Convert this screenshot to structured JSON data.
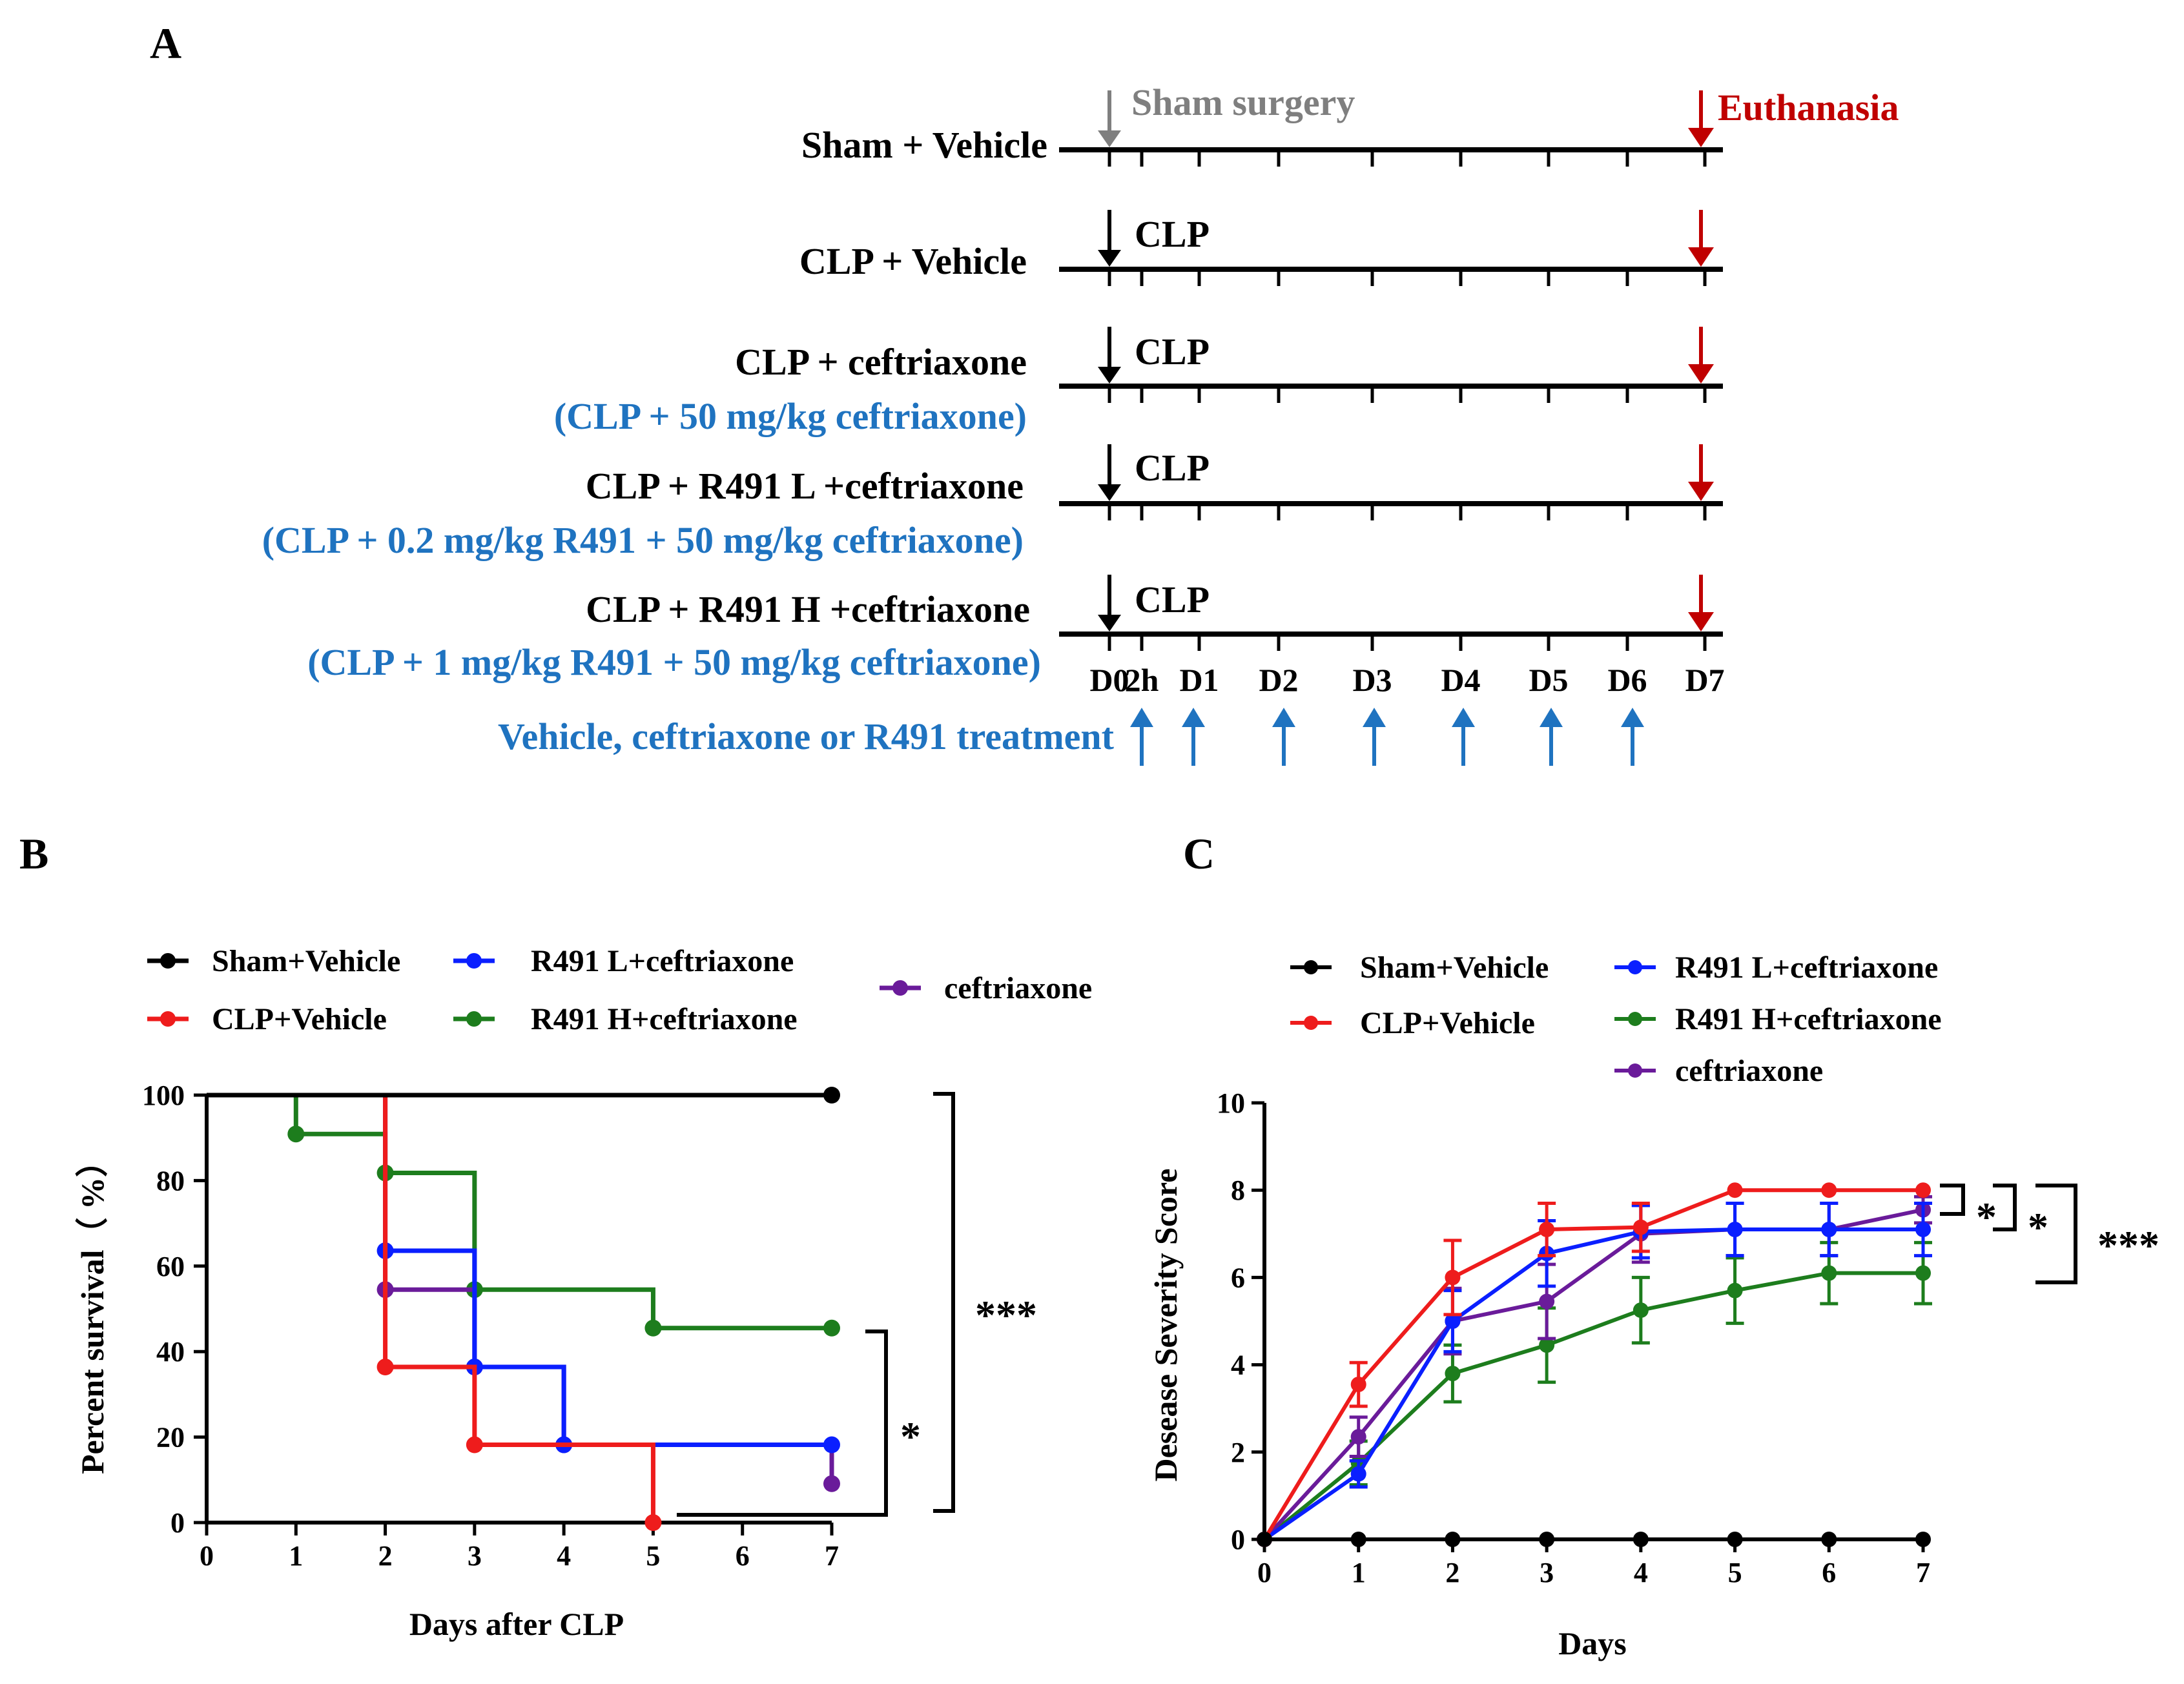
{
  "colors": {
    "black": "#000000",
    "grey": "#7f7f7f",
    "red": "#c00000",
    "blue": "#1f73c0",
    "sham": "#000000",
    "clp": "#ee1c1c",
    "low": "#0a1fff",
    "high": "#1d7d1d",
    "cef": "#6a1b9a"
  },
  "panel_a": {
    "label": "A",
    "sham_surgery": "Sham surgery",
    "euthanasia": "Euthanasia",
    "clp_marker": "CLP",
    "groups": [
      {
        "name": "Sham + Vehicle",
        "dose": ""
      },
      {
        "name": "CLP + Vehicle",
        "dose": ""
      },
      {
        "name": "CLP + ceftriaxone",
        "dose": "(CLP + 50 mg/kg  ceftriaxone)"
      },
      {
        "name": "CLP + R491 L +ceftriaxone",
        "dose": "(CLP + 0.2 mg/kg  R491 + 50 mg/kg  ceftriaxone)"
      },
      {
        "name": "CLP + R491 H +ceftriaxone",
        "dose": "(CLP + 1 mg/kg  R491 + 50 mg/kg  ceftriaxone)"
      }
    ],
    "days": [
      "D0",
      "2h",
      "D1",
      "D2",
      "D3",
      "D4",
      "D5",
      "D6",
      "D7"
    ],
    "treatment": "Vehicle, ceftriaxone or R491 treatment"
  },
  "chart_data": [
    {
      "panel": "B",
      "type": "line",
      "step": true,
      "xlabel": "Days after CLP",
      "ylabel": "Percent survival（ %）",
      "xlim": [
        0,
        7
      ],
      "ylim": [
        0,
        100
      ],
      "xticks": [
        0,
        1,
        2,
        3,
        4,
        5,
        6,
        7
      ],
      "yticks": [
        0,
        20,
        40,
        60,
        80,
        100
      ],
      "legend": "top",
      "series": [
        {
          "name": "Sham+Vehicle",
          "color": "#000000",
          "x": [
            0,
            7
          ],
          "y": [
            100,
            100
          ],
          "markers": [
            [
              7,
              100
            ]
          ]
        },
        {
          "name": "CLP+Vehicle",
          "color": "#ee1c1c",
          "x": [
            0,
            2,
            3,
            5
          ],
          "y": [
            100,
            36.4,
            18.2,
            0
          ],
          "markers": [
            [
              2,
              36.4
            ],
            [
              3,
              18.2
            ],
            [
              5,
              0
            ]
          ]
        },
        {
          "name": "R491 L+ceftriaxone",
          "color": "#0a1fff",
          "x": [
            0,
            2,
            3,
            4,
            7
          ],
          "y": [
            100,
            63.6,
            36.4,
            18.2,
            18.2
          ],
          "markers": [
            [
              2,
              63.6
            ],
            [
              3,
              36.4
            ],
            [
              4,
              18.2
            ],
            [
              7,
              18.2
            ]
          ]
        },
        {
          "name": "R491 H+ceftriaxone",
          "color": "#1d7d1d",
          "x": [
            0,
            1,
            2,
            3,
            5,
            7
          ],
          "y": [
            100,
            90.9,
            81.8,
            54.5,
            45.5,
            45.5
          ],
          "markers": [
            [
              1,
              90.9
            ],
            [
              2,
              81.8
            ],
            [
              3,
              54.5
            ],
            [
              5,
              45.5
            ],
            [
              7,
              45.5
            ]
          ]
        },
        {
          "name": "ceftriaxone",
          "color": "#6a1b9a",
          "x": [
            0,
            2,
            3,
            4,
            7
          ],
          "y": [
            100,
            54.5,
            36.4,
            18.2,
            9.1
          ],
          "markers": [
            [
              2,
              54.5
            ],
            [
              3,
              36.4
            ],
            [
              4,
              18.2
            ],
            [
              7,
              9.1
            ]
          ]
        }
      ],
      "annotations": [
        "***",
        "*"
      ]
    },
    {
      "panel": "C",
      "type": "line",
      "xlabel": "Days",
      "ylabel": "Desease Severity Score",
      "xlim": [
        0,
        7
      ],
      "ylim": [
        0,
        10
      ],
      "xticks": [
        0,
        1,
        2,
        3,
        4,
        5,
        6,
        7
      ],
      "yticks": [
        0,
        2,
        4,
        6,
        8,
        10
      ],
      "legend": "top",
      "x": [
        0,
        1,
        2,
        3,
        4,
        5,
        6,
        7
      ],
      "series": [
        {
          "name": "Sham+Vehicle",
          "color": "#000000",
          "values": [
            0,
            0,
            0,
            0,
            0,
            0,
            0,
            0
          ],
          "err": [
            0,
            0,
            0,
            0,
            0,
            0,
            0,
            0
          ]
        },
        {
          "name": "CLP+Vehicle",
          "color": "#ee1c1c",
          "values": [
            0,
            3.55,
            6.0,
            7.1,
            7.15,
            8.0,
            8.0,
            8.0
          ],
          "err": [
            0,
            0.5,
            0.85,
            0.6,
            0.55,
            0,
            0,
            0
          ]
        },
        {
          "name": "R491 L+ceftriaxone",
          "color": "#0a1fff",
          "values": [
            0,
            1.5,
            5.0,
            6.55,
            7.05,
            7.1,
            7.1,
            7.1
          ],
          "err": [
            0,
            0.3,
            0.7,
            0.75,
            0.6,
            0.6,
            0.6,
            0.6
          ]
        },
        {
          "name": "R491 H+ceftriaxone",
          "color": "#1d7d1d",
          "values": [
            0,
            1.75,
            3.8,
            4.45,
            5.25,
            5.7,
            6.1,
            6.1
          ],
          "err": [
            0,
            0.5,
            0.65,
            0.85,
            0.75,
            0.75,
            0.7,
            0.7
          ]
        },
        {
          "name": "ceftriaxone",
          "color": "#6a1b9a",
          "values": [
            0,
            2.35,
            5.0,
            5.45,
            7.0,
            7.1,
            7.1,
            7.55
          ],
          "err": [
            0,
            0.45,
            0.75,
            0.85,
            0.65,
            0.6,
            0.6,
            0.3
          ]
        }
      ],
      "annotations": [
        "*",
        "*",
        "***"
      ]
    }
  ]
}
